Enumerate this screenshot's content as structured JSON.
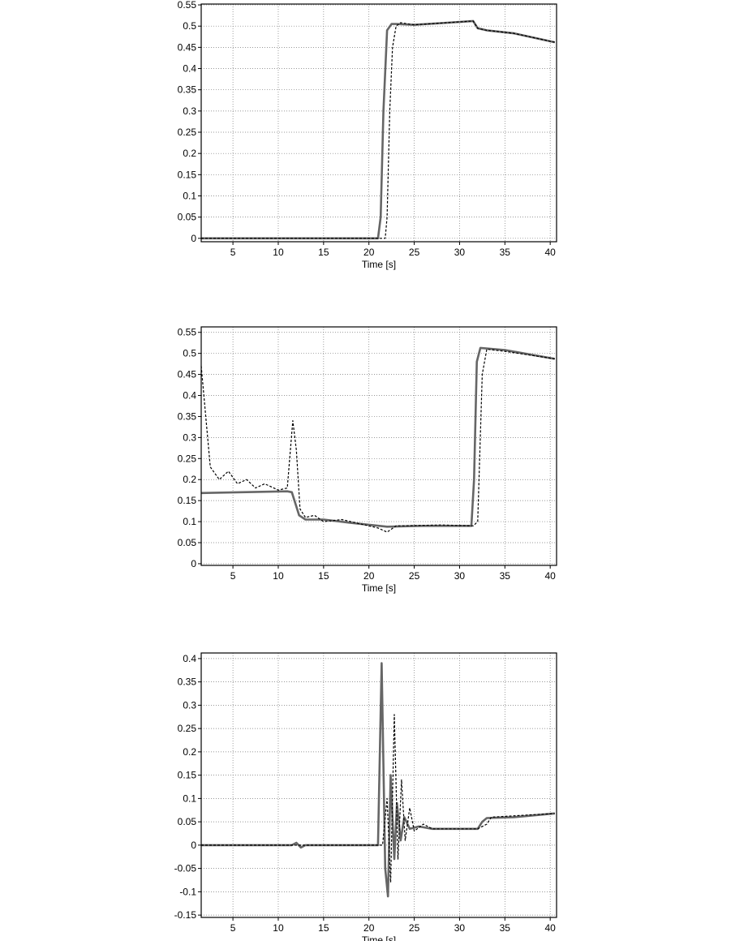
{
  "chart_data": [
    {
      "type": "line",
      "xlabel": "Time [s]",
      "xlim": [
        1.5,
        40.7
      ],
      "ylim": [
        -0.008,
        0.552
      ],
      "xticks": [
        5,
        10,
        15,
        20,
        25,
        30,
        35,
        40
      ],
      "yticks": [
        0,
        0.05,
        0.1,
        0.15,
        0.2,
        0.25,
        0.3,
        0.35,
        0.4,
        0.45,
        0.5,
        0.55
      ],
      "grid": true,
      "series": [
        {
          "color": "#666666",
          "style": "solid",
          "x": [
            1.5,
            21,
            21.3,
            21.6,
            22,
            22.5,
            23,
            25,
            28,
            31.5,
            32,
            33,
            36,
            40.5
          ],
          "values": [
            0,
            0,
            0.05,
            0.3,
            0.49,
            0.505,
            0.505,
            0.503,
            0.507,
            0.512,
            0.495,
            0.49,
            0.483,
            0.462
          ]
        },
        {
          "color": "#000000",
          "style": "dashed",
          "x": [
            1.5,
            21.8,
            22,
            22.3,
            22.6,
            23,
            23.5,
            25,
            31.5,
            32,
            33,
            36,
            40.5
          ],
          "values": [
            0,
            0,
            0.05,
            0.3,
            0.45,
            0.5,
            0.508,
            0.503,
            0.512,
            0.495,
            0.49,
            0.483,
            0.462
          ]
        }
      ]
    },
    {
      "type": "line",
      "xlabel": "Time [s]",
      "xlim": [
        1.5,
        40.7
      ],
      "ylim": [
        -0.004,
        0.563
      ],
      "xticks": [
        5,
        10,
        15,
        20,
        25,
        30,
        35,
        40
      ],
      "yticks": [
        0,
        0.05,
        0.1,
        0.15,
        0.2,
        0.25,
        0.3,
        0.35,
        0.4,
        0.45,
        0.5,
        0.55
      ],
      "grid": true,
      "series": [
        {
          "color": "#666666",
          "style": "solid",
          "x": [
            1.5,
            11,
            11.5,
            12.3,
            13,
            15,
            18,
            22,
            26,
            31.3,
            31.6,
            31.9,
            32.3,
            35,
            40.5
          ],
          "values": [
            0.168,
            0.172,
            0.17,
            0.115,
            0.105,
            0.105,
            0.097,
            0.088,
            0.09,
            0.09,
            0.2,
            0.48,
            0.513,
            0.508,
            0.487
          ]
        },
        {
          "color": "#000000",
          "style": "dashed",
          "x": [
            1.5,
            2,
            2.5,
            3.5,
            4.5,
            5.5,
            6.5,
            7.5,
            8.5,
            10,
            11,
            11.6,
            12,
            12.4,
            13,
            14,
            15,
            17,
            19,
            21,
            22,
            23,
            28,
            31.5,
            32,
            32.5,
            33,
            35,
            40.5
          ],
          "values": [
            0.47,
            0.35,
            0.23,
            0.2,
            0.22,
            0.19,
            0.2,
            0.18,
            0.19,
            0.175,
            0.18,
            0.34,
            0.27,
            0.13,
            0.11,
            0.115,
            0.1,
            0.105,
            0.095,
            0.085,
            0.075,
            0.09,
            0.092,
            0.09,
            0.1,
            0.45,
            0.51,
            0.505,
            0.487
          ]
        }
      ]
    },
    {
      "type": "line",
      "xlabel": "Time [s]",
      "xlim": [
        1.5,
        40.7
      ],
      "ylim": [
        -0.155,
        0.412
      ],
      "xticks": [
        5,
        10,
        15,
        20,
        25,
        30,
        35,
        40
      ],
      "yticks": [
        -0.15,
        -0.1,
        -0.05,
        0,
        0.05,
        0.1,
        0.15,
        0.2,
        0.25,
        0.3,
        0.35,
        0.4
      ],
      "grid": true,
      "series": [
        {
          "color": "#666666",
          "style": "solid",
          "x": [
            1.5,
            11.5,
            12,
            12.5,
            13,
            21,
            21.4,
            21.8,
            22.1,
            22.4,
            22.8,
            23.1,
            23.5,
            23.9,
            24.5,
            25.5,
            27,
            32,
            32.5,
            33,
            36,
            40.5
          ],
          "values": [
            0,
            0,
            0.005,
            -0.005,
            0,
            0,
            0.39,
            -0.05,
            -0.11,
            0.15,
            -0.03,
            0.09,
            0.01,
            0.06,
            0.035,
            0.04,
            0.035,
            0.035,
            0.05,
            0.058,
            0.06,
            0.068
          ]
        },
        {
          "color": "#000000",
          "style": "dashed",
          "x": [
            1.5,
            21.5,
            22,
            22.4,
            22.8,
            23.2,
            23.6,
            24,
            24.5,
            25,
            26,
            27,
            32,
            33,
            33.5,
            40.5
          ],
          "values": [
            0,
            0,
            0.1,
            -0.08,
            0.28,
            -0.03,
            0.14,
            0.01,
            0.08,
            0.03,
            0.045,
            0.035,
            0.035,
            0.045,
            0.06,
            0.068
          ]
        }
      ]
    }
  ]
}
